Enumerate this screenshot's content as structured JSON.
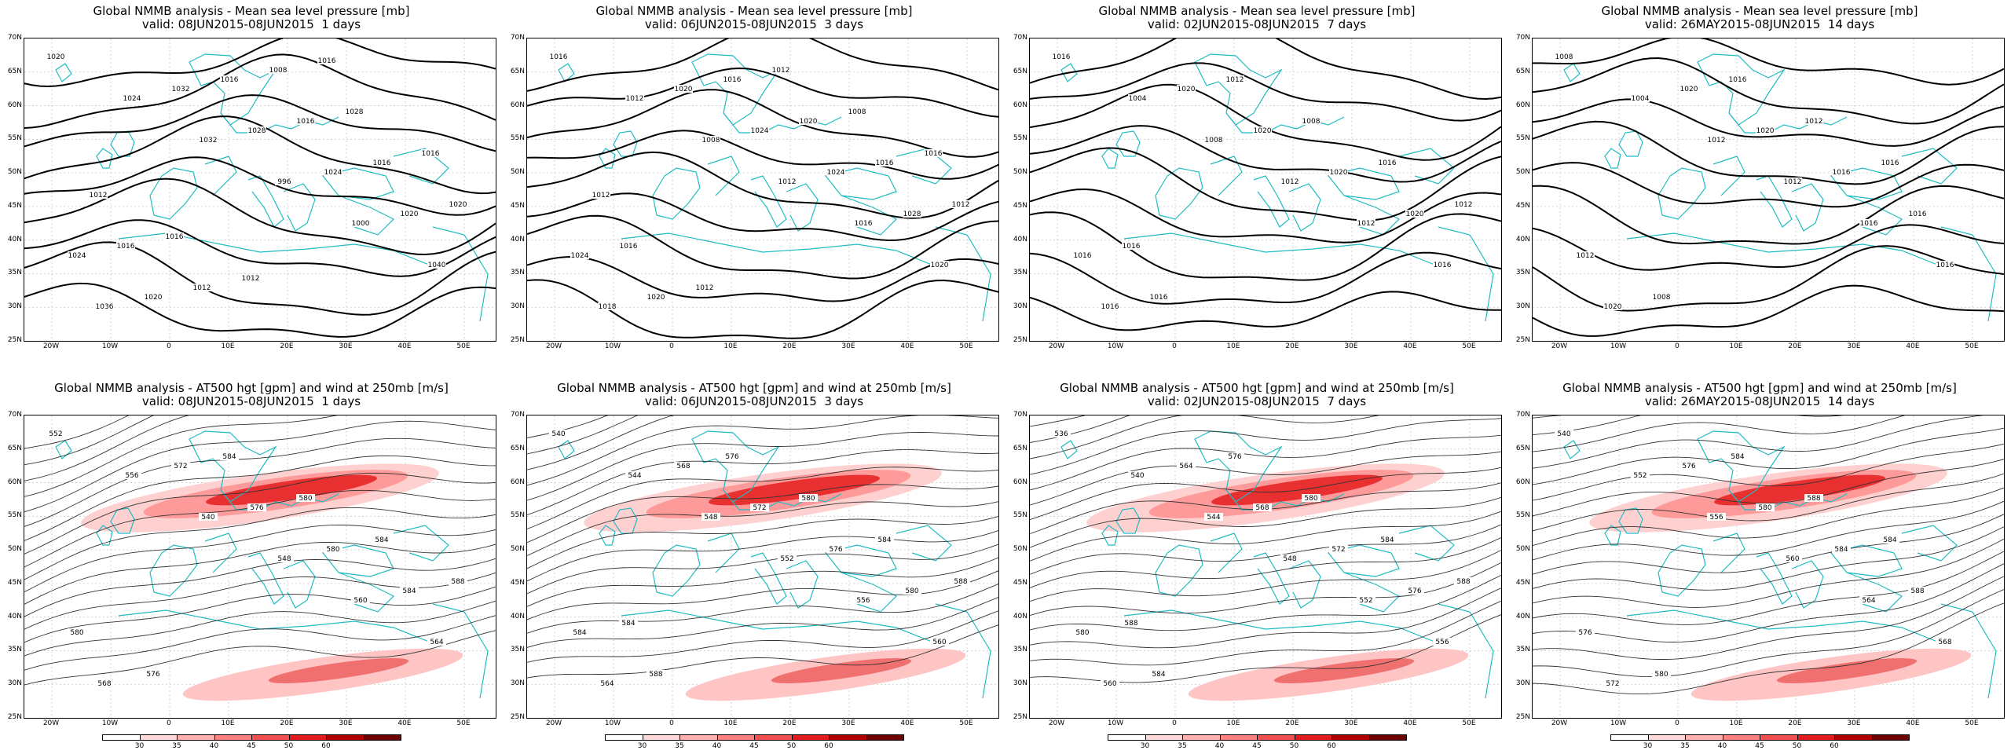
{
  "lat_labels": [
    "70N",
    "65N",
    "60N",
    "55N",
    "50N",
    "45N",
    "40N",
    "35N",
    "30N",
    "25N"
  ],
  "lon_labels": [
    "20W",
    "10W",
    "0",
    "10E",
    "20E",
    "30E",
    "40E",
    "50E"
  ],
  "colorbar": {
    "ticks": [
      "30",
      "35",
      "40",
      "45",
      "50",
      "60"
    ],
    "colors": [
      "#ffffff",
      "#ffd9d9",
      "#ffb0b0",
      "#ff8080",
      "#f25050",
      "#e01c1c",
      "#b00000",
      "#700000"
    ]
  },
  "panels": [
    {
      "id": "mslp-1d",
      "type": "mslp",
      "title": "Global NMMB analysis - Mean sea level pressure [mb]",
      "subtitle": "valid: 08JUN2015-08JUN2015  1 days",
      "contour_labels": [
        "1020",
        "1024",
        "1032",
        "996",
        "1000",
        "1040",
        "1036",
        "1032",
        "1028",
        "1024",
        "1020",
        "1024",
        "1020",
        "1016",
        "1016",
        "1016",
        "1020",
        "1016",
        "1012",
        "1008",
        "1028",
        "1016",
        "1012",
        "1016",
        "1012",
        "1016"
      ]
    },
    {
      "id": "mslp-3d",
      "type": "mslp",
      "title": "Global NMMB analysis - Mean sea level pressure [mb]",
      "subtitle": "valid: 06JUN2015-08JUN2015  3 days",
      "contour_labels": [
        "1016",
        "1012",
        "1008",
        "1012",
        "1016",
        "1020",
        "1018",
        "1020",
        "1024",
        "1024",
        "1028",
        "1024",
        "1020",
        "1016",
        "1020",
        "1016",
        "1012",
        "1016",
        "1012",
        "1012",
        "1008",
        "1016",
        "1012"
      ]
    },
    {
      "id": "mslp-7d",
      "type": "mslp",
      "title": "Global NMMB analysis - Mean sea level pressure [mb]",
      "subtitle": "valid: 02JUN2015-08JUN2015  7 days",
      "contour_labels": [
        "1016",
        "1004",
        "1008",
        "1012",
        "1012",
        "1016",
        "1016",
        "1020",
        "1020",
        "1020",
        "1020",
        "1016",
        "1016",
        "1012",
        "1008",
        "1016",
        "1012",
        "1016"
      ]
    },
    {
      "id": "mslp-14d",
      "type": "mslp",
      "title": "Global NMMB analysis - Mean sea level pressure [mb]",
      "subtitle": "valid: 26MAY2015-08JUN2015  14 days",
      "contour_labels": [
        "1008",
        "1004",
        "1012",
        "1012",
        "1016",
        "1016",
        "1020",
        "1020",
        "1020",
        "1016",
        "1016",
        "1012",
        "1008",
        "1016",
        "1012",
        "1016"
      ]
    },
    {
      "id": "at500-1d",
      "type": "at500",
      "title": "Global NMMB analysis - AT500 hgt [gpm] and wind at 250mb [m/s]",
      "subtitle": "valid: 08JUN2015-08JUN2015  1 days",
      "contour_labels": [
        "552",
        "556",
        "540",
        "548",
        "560",
        "564",
        "568",
        "572",
        "576",
        "580",
        "584",
        "580",
        "576",
        "584",
        "580",
        "584",
        "588"
      ]
    },
    {
      "id": "at500-3d",
      "type": "at500",
      "title": "Global NMMB analysis - AT500 hgt [gpm] and wind at 250mb [m/s]",
      "subtitle": "valid: 06JUN2015-08JUN2015  3 days",
      "contour_labels": [
        "540",
        "544",
        "548",
        "552",
        "556",
        "560",
        "564",
        "568",
        "572",
        "576",
        "580",
        "584",
        "588",
        "576",
        "580",
        "584",
        "588",
        "584"
      ]
    },
    {
      "id": "at500-7d",
      "type": "at500",
      "title": "Global NMMB analysis - AT500 hgt [gpm] and wind at 250mb [m/s]",
      "subtitle": "valid: 02JUN2015-08JUN2015  7 days",
      "contour_labels": [
        "536",
        "540",
        "544",
        "548",
        "552",
        "556",
        "560",
        "564",
        "568",
        "572",
        "576",
        "580",
        "584",
        "576",
        "580",
        "584",
        "588",
        "588"
      ]
    },
    {
      "id": "at500-14d",
      "type": "at500",
      "title": "Global NMMB analysis - AT500 hgt [gpm] and wind at 250mb [m/s]",
      "subtitle": "valid: 26MAY2015-08JUN2015  14 days",
      "contour_labels": [
        "540",
        "552",
        "556",
        "560",
        "564",
        "568",
        "572",
        "576",
        "580",
        "584",
        "588",
        "576",
        "580",
        "584",
        "588",
        "584"
      ]
    }
  ]
}
